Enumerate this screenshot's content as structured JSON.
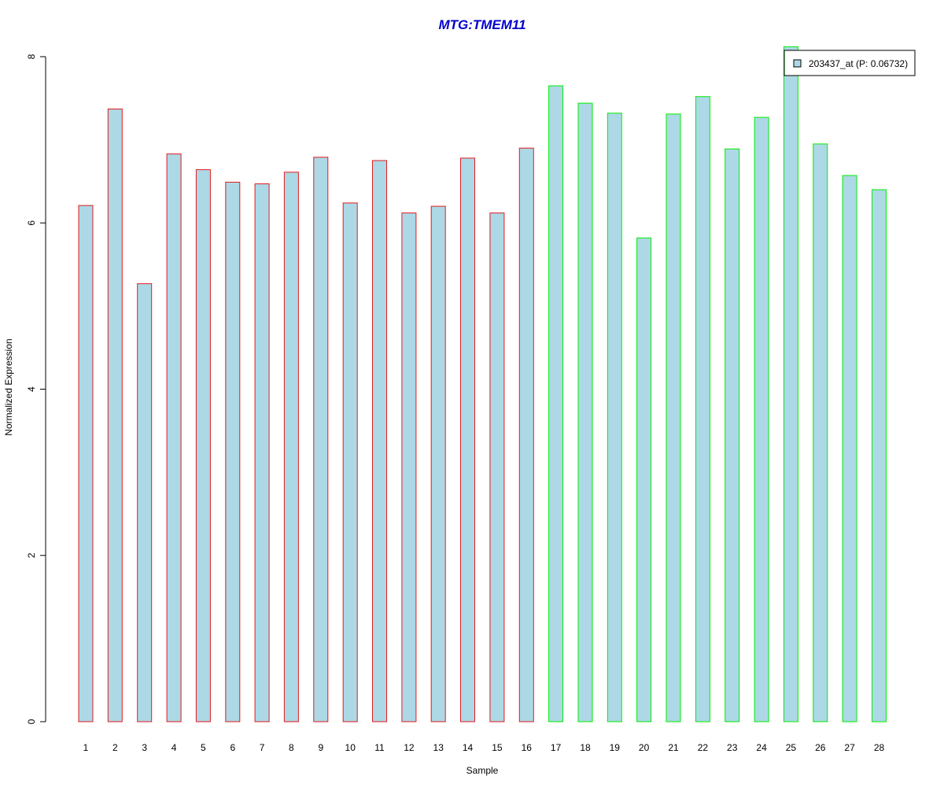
{
  "chart_data": {
    "type": "bar",
    "title": "MTG:TMEM11",
    "xlabel": "Sample",
    "ylabel": "Normalized Expression",
    "ylim": [
      0,
      8
    ],
    "yticks": [
      0,
      2,
      4,
      6,
      8
    ],
    "categories": [
      "1",
      "2",
      "3",
      "4",
      "5",
      "6",
      "7",
      "8",
      "9",
      "10",
      "11",
      "12",
      "13",
      "14",
      "15",
      "16",
      "17",
      "18",
      "19",
      "20",
      "21",
      "22",
      "23",
      "24",
      "25",
      "26",
      "27",
      "28"
    ],
    "series": [
      {
        "name": "203437_at (P: 0.06732)",
        "values": [
          6.21,
          7.37,
          5.27,
          6.83,
          6.64,
          6.49,
          6.47,
          6.61,
          6.79,
          6.24,
          6.75,
          6.12,
          6.2,
          6.78,
          6.12,
          6.9,
          7.65,
          7.44,
          7.32,
          5.82,
          7.31,
          7.52,
          6.89,
          7.27,
          8.12,
          6.95,
          6.57,
          6.4
        ]
      }
    ],
    "groups": [
      "red",
      "red",
      "red",
      "red",
      "red",
      "red",
      "red",
      "red",
      "red",
      "red",
      "red",
      "red",
      "red",
      "red",
      "red",
      "red",
      "green",
      "green",
      "green",
      "green",
      "green",
      "green",
      "green",
      "green",
      "green",
      "green",
      "green",
      "green"
    ],
    "colors": {
      "fill": "#add8e6",
      "group_red": "#e41a1c",
      "group_green": "#00ee00",
      "title": "#0000cc"
    },
    "legend_position": "top-right",
    "grid": false
  }
}
